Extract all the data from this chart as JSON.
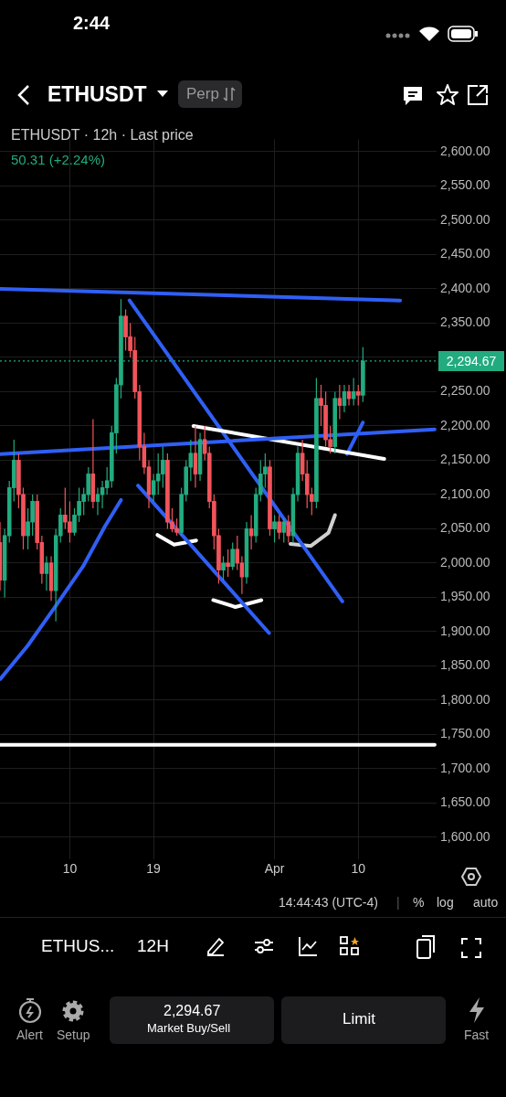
{
  "chart_data": {
    "type": "candlestick",
    "title": "ETHUSDT",
    "subtitle": "ETHUSDT · 12h · Last price",
    "annotations": [
      "50.31 (+2.24%)",
      "2:44",
      "Perp",
      "14:44:43 (UTC-4)",
      "|",
      "%",
      "log",
      "auto",
      "ETHUS...",
      "12H",
      "Alert",
      "Setup",
      "2,294.67",
      "Market Buy/Sell",
      "Limit",
      "Fast"
    ],
    "x": [
      "--03-02T12:00",
      "--03-03T00:00",
      "--03-03T12:00",
      "--03-04T00:00",
      "--03-04T12:00",
      "--03-05T00:00",
      "--03-05T12:00",
      "--03-06T00:00",
      "--03-06T12:00",
      "--03-07T00:00",
      "--03-07T12:00",
      "--03-08T00:00",
      "--03-08T12:00",
      "--03-09T00:00",
      "--03-09T12:00",
      "--03-10T00:00",
      "--03-10T12:00",
      "--03-11T00:00",
      "--03-11T12:00",
      "--03-12T00:00",
      "--03-12T12:00",
      "--03-13T00:00",
      "--03-13T12:00",
      "--03-14T00:00",
      "--03-14T12:00",
      "--03-15T00:00",
      "--03-15T12:00",
      "--03-16T00:00",
      "--03-16T12:00",
      "--03-17T00:00",
      "--03-17T12:00",
      "--03-18T00:00",
      "--03-18T12:00",
      "--03-19T00:00",
      "--03-19T12:00",
      "--03-20T00:00",
      "--03-20T12:00",
      "--03-21T00:00",
      "--03-21T12:00",
      "--03-22T00:00",
      "--03-22T12:00",
      "--03-23T00:00",
      "--03-23T12:00",
      "--03-24T00:00",
      "--03-24T12:00",
      "--03-25T00:00",
      "--03-25T12:00",
      "--03-26T00:00",
      "--03-26T12:00",
      "--03-27T00:00",
      "--03-27T12:00",
      "--03-28T00:00",
      "--03-28T12:00",
      "--03-29T00:00",
      "--03-29T12:00",
      "--03-30T00:00",
      "--03-30T12:00",
      "--03-31T00:00",
      "--03-31T12:00",
      "--04-01T00:00",
      "--04-01T12:00",
      "--04-02T00:00",
      "--04-02T12:00",
      "--04-03T00:00",
      "--04-03T12:00",
      "--04-04T00:00",
      "--04-04T12:00",
      "--04-05T00:00",
      "--04-05T12:00",
      "--04-06T00:00",
      "--04-06T12:00",
      "--04-07T00:00",
      "--04-07T12:00",
      "--04-08T00:00",
      "--04-08T12:00",
      "--04-09T00:00",
      "--04-09T12:00",
      "--04-10T00:00",
      "--04-10T12:00"
    ],
    "ohlc": [
      [
        2030,
        2060,
        1960,
        1975
      ],
      [
        1975,
        2050,
        1950,
        2040
      ],
      [
        2040,
        2120,
        2030,
        2110
      ],
      [
        2110,
        2180,
        2090,
        2150
      ],
      [
        2150,
        2160,
        2080,
        2100
      ],
      [
        2100,
        2110,
        2020,
        2040
      ],
      [
        2040,
        2080,
        2020,
        2060
      ],
      [
        2060,
        2100,
        2040,
        2090
      ],
      [
        2090,
        2100,
        2020,
        2030
      ],
      [
        2030,
        2040,
        1970,
        1985
      ],
      [
        1985,
        2010,
        1960,
        2000
      ],
      [
        2000,
        2010,
        1945,
        1960
      ],
      [
        1960,
        2050,
        1915,
        2040
      ],
      [
        2040,
        2080,
        2030,
        2070
      ],
      [
        2070,
        2110,
        2050,
        2060
      ],
      [
        2060,
        2090,
        2030,
        2045
      ],
      [
        2045,
        2080,
        2040,
        2070
      ],
      [
        2070,
        2110,
        2060,
        2090
      ],
      [
        2090,
        2110,
        2070,
        2100
      ],
      [
        2100,
        2140,
        2090,
        2130
      ],
      [
        2130,
        2210,
        2080,
        2090
      ],
      [
        2090,
        2110,
        2070,
        2100
      ],
      [
        2100,
        2120,
        2080,
        2110
      ],
      [
        2110,
        2140,
        2100,
        2120
      ],
      [
        2120,
        2200,
        2110,
        2190
      ],
      [
        2190,
        2270,
        2160,
        2260
      ],
      [
        2260,
        2385,
        2240,
        2360
      ],
      [
        2360,
        2370,
        2310,
        2330
      ],
      [
        2330,
        2350,
        2300,
        2310
      ],
      [
        2310,
        2330,
        2240,
        2250
      ],
      [
        2250,
        2260,
        2150,
        2170
      ],
      [
        2170,
        2190,
        2130,
        2140
      ],
      [
        2140,
        2150,
        2080,
        2100
      ],
      [
        2100,
        2130,
        2090,
        2120
      ],
      [
        2120,
        2160,
        2100,
        2130
      ],
      [
        2130,
        2170,
        2110,
        2150
      ],
      [
        2150,
        2160,
        2050,
        2060
      ],
      [
        2060,
        2080,
        2045,
        2050
      ],
      [
        2050,
        2065,
        2040,
        2045
      ],
      [
        2045,
        2110,
        2040,
        2100
      ],
      [
        2100,
        2150,
        2090,
        2140
      ],
      [
        2140,
        2180,
        2120,
        2160
      ],
      [
        2160,
        2200,
        2110,
        2130
      ],
      [
        2130,
        2190,
        2120,
        2180
      ],
      [
        2180,
        2200,
        2150,
        2160
      ],
      [
        2160,
        2170,
        2080,
        2090
      ],
      [
        2090,
        2100,
        2020,
        2040
      ],
      [
        2040,
        2050,
        1970,
        1990
      ],
      [
        1990,
        2010,
        1975,
        2000
      ],
      [
        2000,
        2020,
        1980,
        1995
      ],
      [
        1995,
        2030,
        1990,
        2020
      ],
      [
        2020,
        2040,
        1990,
        2000
      ],
      [
        2000,
        2010,
        1955,
        1980
      ],
      [
        1980,
        2060,
        1970,
        2050
      ],
      [
        2050,
        2070,
        2020,
        2040
      ],
      [
        2040,
        2110,
        2030,
        2100
      ],
      [
        2100,
        2150,
        2090,
        2130
      ],
      [
        2130,
        2160,
        2110,
        2140
      ],
      [
        2140,
        2150,
        2040,
        2050
      ],
      [
        2050,
        2070,
        2030,
        2060
      ],
      [
        2060,
        2070,
        2035,
        2045
      ],
      [
        2045,
        2065,
        2030,
        2060
      ],
      [
        2060,
        2070,
        2030,
        2040
      ],
      [
        2040,
        2110,
        2030,
        2100
      ],
      [
        2100,
        2170,
        2090,
        2160
      ],
      [
        2160,
        2180,
        2120,
        2130
      ],
      [
        2130,
        2150,
        2080,
        2100
      ],
      [
        2100,
        2110,
        2070,
        2090
      ],
      [
        2090,
        2270,
        2080,
        2240
      ],
      [
        2240,
        2260,
        2200,
        2230
      ],
      [
        2230,
        2250,
        2170,
        2180
      ],
      [
        2180,
        2200,
        2160,
        2170
      ],
      [
        2170,
        2250,
        2160,
        2240
      ],
      [
        2240,
        2260,
        2210,
        2230
      ],
      [
        2230,
        2260,
        2220,
        2250
      ],
      [
        2250,
        2260,
        2230,
        2240
      ],
      [
        2240,
        2270,
        2230,
        2250
      ],
      [
        2250,
        2260,
        2230,
        2245
      ],
      [
        2245,
        2315,
        2235,
        2294.67
      ]
    ],
    "colors": [
      "#f2545b",
      "#22ab7f",
      "#22ab7f",
      "#22ab7f",
      "#f2545b",
      "#f2545b",
      "#22ab7f",
      "#22ab7f",
      "#f2545b",
      "#f2545b",
      "#22ab7f",
      "#f2545b",
      "#22ab7f",
      "#22ab7f",
      "#f2545b",
      "#f2545b",
      "#22ab7f",
      "#22ab7f",
      "#22ab7f",
      "#22ab7f",
      "#f2545b",
      "#22ab7f",
      "#22ab7f",
      "#22ab7f",
      "#22ab7f",
      "#22ab7f",
      "#22ab7f",
      "#f2545b",
      "#f2545b",
      "#f2545b",
      "#f2545b",
      "#f2545b",
      "#f2545b",
      "#22ab7f",
      "#22ab7f",
      "#22ab7f",
      "#f2545b",
      "#f2545b",
      "#f2545b",
      "#22ab7f",
      "#22ab7f",
      "#22ab7f",
      "#f2545b",
      "#22ab7f",
      "#f2545b",
      "#f2545b",
      "#f2545b",
      "#f2545b",
      "#22ab7f",
      "#f2545b",
      "#22ab7f",
      "#f2545b",
      "#f2545b",
      "#22ab7f",
      "#f2545b",
      "#22ab7f",
      "#22ab7f",
      "#22ab7f",
      "#f2545b",
      "#22ab7f",
      "#f2545b",
      "#22ab7f",
      "#f2545b",
      "#22ab7f",
      "#22ab7f",
      "#f2545b",
      "#f2545b",
      "#f2545b",
      "#22ab7f",
      "#f2545b",
      "#f2545b",
      "#f2545b",
      "#22ab7f",
      "#f2545b",
      "#22ab7f",
      "#f2545b",
      "#22ab7f",
      "#f2545b",
      "#22ab7f"
    ],
    "series": [
      {
        "type": "line",
        "color": "#2f5ff5",
        "x": [
          "--03-02T13:00",
          "--04-14T12:00"
        ],
        "values": [
          2400,
          2383
        ]
      },
      {
        "type": "line",
        "color": "#ffffff",
        "x": [
          "--03-02T13:00",
          "--04-18T05:00"
        ],
        "values": [
          1735,
          1735
        ]
      },
      {
        "type": "line",
        "color": "#2f5ff5",
        "x": [
          "--03-02T13:00",
          "--04-18T05:00"
        ],
        "values": [
          2159,
          2195
        ]
      },
      {
        "type": "line",
        "color": "#ffffff",
        "x": [
          "--03-23T07:00",
          "--04-12T19:00"
        ],
        "values": [
          2200,
          2152
        ]
      },
      {
        "type": "line",
        "color": "#2f5ff5",
        "x": [
          "--03-16T10:00",
          "--04-08T07:00"
        ],
        "values": [
          2383,
          1944
        ]
      },
      {
        "type": "line",
        "color": "#2f5ff5",
        "x": [
          "--03-17T08:00",
          "--03-31T10:00"
        ],
        "values": [
          2113,
          1898
        ]
      },
      {
        "type": "line",
        "color": "#2f5ff5",
        "x": [
          "--03-02T13:00",
          "--03-05T12:00",
          "--03-08T10:00",
          "--03-11T10:00",
          "--03-13T19:00",
          "--03-15T12:00"
        ],
        "values": [
          1831,
          1880,
          1936,
          1995,
          2054,
          2092
        ]
      },
      {
        "type": "line",
        "color": "#ffffff",
        "x": [
          "--03-19T10:00",
          "--03-21T05:00",
          "--03-23T14:00"
        ],
        "values": [
          2041,
          2027,
          2033
        ]
      },
      {
        "type": "line",
        "color": "#ffffff",
        "x": [
          "--03-25T10:00",
          "--03-27T19:00",
          "--03-30T14:00"
        ],
        "values": [
          1946,
          1936,
          1946
        ]
      },
      {
        "type": "line",
        "color": "#d0d0d0",
        "x": [
          "--04-02T17:00",
          "--04-04T22:00",
          "--04-06T19:00",
          "--04-07T12:00"
        ],
        "values": [
          2028,
          2025,
          2044,
          2070
        ]
      },
      {
        "type": "line",
        "color": "#2f5ff5",
        "x": [
          "--04-08T19:00",
          "--04-10T12:00"
        ],
        "values": [
          2159,
          2205
        ]
      }
    ],
    "xlim": [
      "--03-02T12:00",
      "--04-18T10:00"
    ],
    "xticks": [
      {
        "value": "--03-10",
        "label": "10"
      },
      {
        "value": "--03-19",
        "label": "19"
      },
      {
        "value": "--04-01",
        "label": "Apr"
      },
      {
        "value": "--04-10",
        "label": "10"
      }
    ],
    "ylim": [
      1568,
      2618
    ],
    "yticks": [
      {
        "value": 1600,
        "label": "1,600.00"
      },
      {
        "value": 1650,
        "label": "1,650.00"
      },
      {
        "value": 1700,
        "label": "1,700.00"
      },
      {
        "value": 1750,
        "label": "1,750.00"
      },
      {
        "value": 1800,
        "label": "1,800.00"
      },
      {
        "value": 1850,
        "label": "1,850.00"
      },
      {
        "value": 1900,
        "label": "1,900.00"
      },
      {
        "value": 1950,
        "label": "1,950.00"
      },
      {
        "value": 2000,
        "label": "2,000.00"
      },
      {
        "value": 2050,
        "label": "2,050.00"
      },
      {
        "value": 2100,
        "label": "2,100.00"
      },
      {
        "value": 2150,
        "label": "2,150.00"
      },
      {
        "value": 2200,
        "label": "2,200.00"
      },
      {
        "value": 2250,
        "label": "2,250.00"
      },
      {
        "value": 2300,
        "label": null
      },
      {
        "value": 2350,
        "label": "2,350.00"
      },
      {
        "value": 2400,
        "label": "2,400.00"
      },
      {
        "value": 2450,
        "label": "2,450.00"
      },
      {
        "value": 2500,
        "label": "2,500.00"
      },
      {
        "value": 2550,
        "label": "2,550.00"
      },
      {
        "value": 2600,
        "label": "2,600.00"
      }
    ],
    "ref_lines": [
      {
        "axis": "y",
        "value": 2294.67,
        "label": "2,294.67",
        "color": "#22ab7f",
        "line_style": "dotted"
      }
    ],
    "grid": true,
    "legend": false
  }
}
